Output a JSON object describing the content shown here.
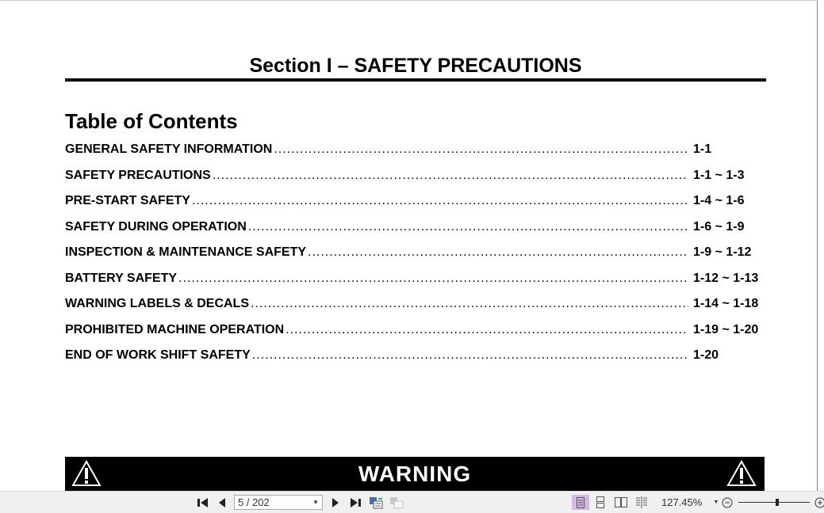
{
  "document": {
    "section_title": "Section I – SAFETY PRECAUTIONS",
    "toc_heading": "Table of Contents",
    "toc": [
      {
        "label": "GENERAL SAFETY INFORMATION",
        "page": "1-1"
      },
      {
        "label": "SAFETY PRECAUTIONS",
        "page": "1-1 ~ 1-3"
      },
      {
        "label": "PRE-START SAFETY",
        "page": "1-4 ~ 1-6"
      },
      {
        "label": "SAFETY DURING OPERATION",
        "page": "1-6 ~ 1-9"
      },
      {
        "label": "INSPECTION & MAINTENANCE SAFETY",
        "page": "1-9 ~ 1-12"
      },
      {
        "label": "BATTERY SAFETY",
        "page": "1-12 ~ 1-13"
      },
      {
        "label": "WARNING LABELS & DECALS",
        "page": "1-14 ~ 1-18"
      },
      {
        "label": "PROHIBITED MACHINE OPERATION",
        "page": "1-19 ~ 1-20"
      },
      {
        "label": "END OF WORK SHIFT SAFETY",
        "page": "1-20"
      }
    ],
    "warning_label": "WARNING"
  },
  "toolbar": {
    "page_indicator": "5 / 202",
    "zoom_level": "127.45%",
    "zoom_slider_percent": 55,
    "active_view": "single-page"
  }
}
